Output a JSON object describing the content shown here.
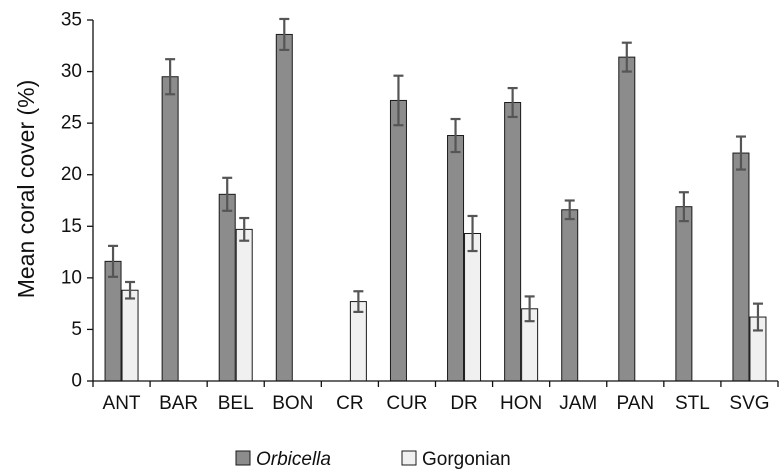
{
  "chart_data": {
    "type": "bar",
    "title": "",
    "xlabel": "",
    "ylabel": "Mean coral cover (%)",
    "ylim": [
      0,
      35
    ],
    "yticks": [
      0,
      5,
      10,
      15,
      20,
      25,
      30,
      35
    ],
    "grid": false,
    "legend_position": "bottom-center",
    "categories": [
      "ANT",
      "BAR",
      "BEL",
      "BON",
      "CR",
      "CUR",
      "DR",
      "HON",
      "JAM",
      "PAN",
      "STL",
      "SVG"
    ],
    "series": [
      {
        "name": "Orbicella",
        "name_style": "italic",
        "color": "#8c8c8c",
        "values": [
          11.6,
          29.5,
          18.1,
          33.6,
          null,
          27.2,
          23.8,
          27.0,
          16.6,
          31.4,
          16.9,
          22.1
        ],
        "error": [
          1.5,
          1.7,
          1.6,
          1.5,
          null,
          2.4,
          1.6,
          1.4,
          0.9,
          1.4,
          1.4,
          1.6
        ]
      },
      {
        "name": "Gorgonian",
        "name_style": "normal",
        "color": "#f0f0f0",
        "values": [
          8.8,
          null,
          14.7,
          null,
          7.7,
          null,
          14.3,
          7.0,
          null,
          null,
          null,
          6.2
        ],
        "error": [
          0.8,
          null,
          1.1,
          null,
          1.0,
          null,
          1.7,
          1.2,
          null,
          null,
          null,
          1.3
        ]
      }
    ]
  }
}
